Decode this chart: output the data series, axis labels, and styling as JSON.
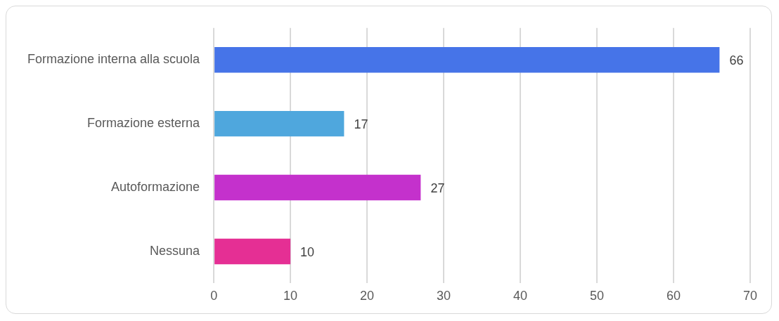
{
  "chart_data": {
    "type": "bar",
    "orientation": "horizontal",
    "categories": [
      "Formazione interna alla scuola",
      "Formazione esterna",
      "Autoformazione",
      "Nessuna"
    ],
    "values": [
      66,
      17,
      27,
      10
    ],
    "colors": [
      "#4674e8",
      "#4fa7dd",
      "#c431cc",
      "#e52f94"
    ],
    "xlim": [
      0,
      70
    ],
    "xticks": [
      0,
      10,
      20,
      30,
      40,
      50,
      60,
      70
    ],
    "grid": "x",
    "legend": false,
    "data_labels": true
  }
}
